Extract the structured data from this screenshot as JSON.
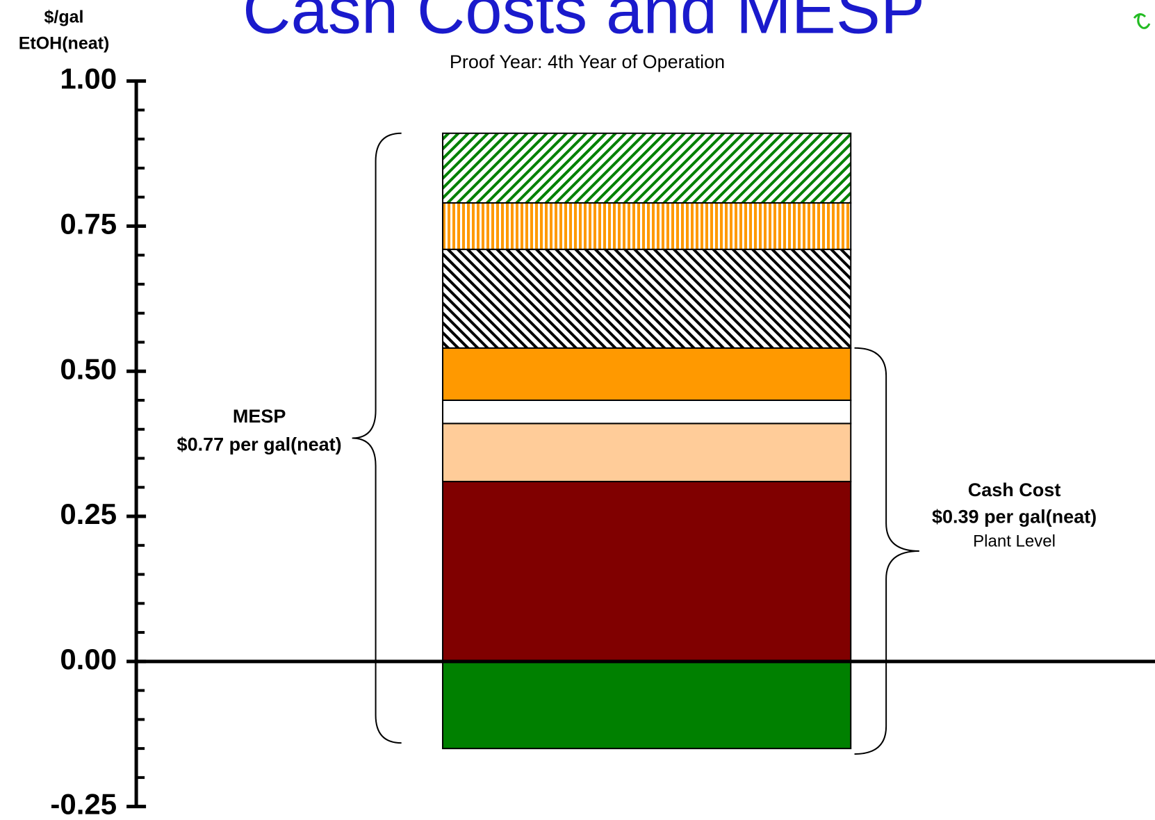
{
  "chart_data": {
    "type": "stacked-bar",
    "title": "Cash Costs and MESP",
    "subtitle": "Proof Year: 4th Year of Operation",
    "y_label": [
      "$/gal",
      "EtOH(neat)"
    ],
    "values": [
      -0.15,
      0.31,
      0.1,
      0.04,
      0.09,
      0.17,
      0.08,
      0.12
    ],
    "colors": [
      "#008000",
      "#800000",
      "#ffcc99",
      "#ffffff",
      "#ff9900",
      "#000000",
      "#ff9900",
      "#008000"
    ],
    "patterns": [
      "solid",
      "solid",
      "solid",
      "solid",
      "solid",
      "diag-left",
      "vertical",
      "diag-right"
    ],
    "ylim": [
      -0.25,
      1.0
    ],
    "yticks": [
      {
        "value": -0.25,
        "label": "-0.25"
      },
      {
        "value": 0,
        "label": "0.00"
      },
      0.25,
      {
        "value": 0.5,
        "label": "0.50"
      },
      0.75,
      {
        "value": 1.0,
        "label": "1.00"
      }
    ],
    "yminorticks": [
      -0.2,
      -0.15,
      -0.1,
      -0.05,
      0.05,
      0.1,
      0.15,
      0.2,
      0.3,
      0.35,
      0.4,
      0.45,
      0.55,
      0.6,
      0.65,
      0.7,
      0.8,
      0.85,
      0.9,
      0.95
    ],
    "annotations": {
      "mesp": [
        "MESP",
        "$0.77 per gal(neat)"
      ],
      "cash": [
        "Cash Cost",
        "$0.39 per gal(neat)",
        "Plant Level"
      ]
    }
  }
}
